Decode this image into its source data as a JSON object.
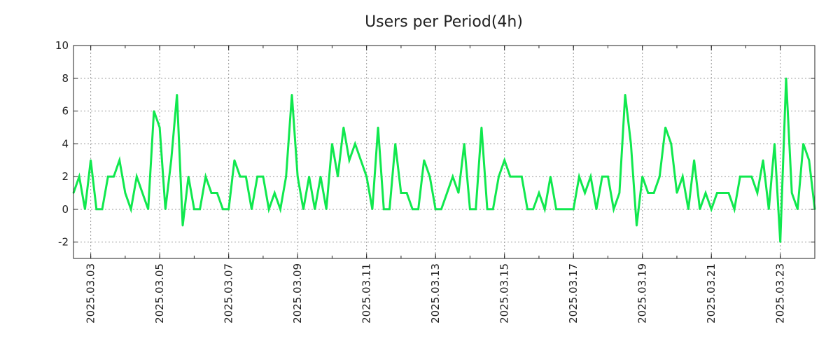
{
  "chart_data": {
    "type": "line",
    "title": "Users per Period(4h)",
    "xlabel": "",
    "ylabel": "",
    "period": "4h",
    "ylim": [
      -3,
      10
    ],
    "yticks": [
      -2,
      0,
      2,
      4,
      6,
      8,
      10
    ],
    "xticks": [
      {
        "index": 3,
        "label": "2025.03.03"
      },
      {
        "index": 15,
        "label": "2025.03.05"
      },
      {
        "index": 27,
        "label": "2025.03.07"
      },
      {
        "index": 39,
        "label": "2025.03.09"
      },
      {
        "index": 51,
        "label": "2025.03.11"
      },
      {
        "index": 63,
        "label": "2025.03.13"
      },
      {
        "index": 75,
        "label": "2025.03.15"
      },
      {
        "index": 87,
        "label": "2025.03.17"
      },
      {
        "index": 99,
        "label": "2025.03.19"
      },
      {
        "index": 111,
        "label": "2025.03.21"
      },
      {
        "index": 123,
        "label": "2025.03.23"
      }
    ],
    "grid": true,
    "legend": "none",
    "series": [
      {
        "name": "Users",
        "color": "#10e84e",
        "values": [
          1,
          2,
          0,
          3,
          0,
          0,
          2,
          2,
          3,
          1,
          0,
          2,
          1,
          0,
          6,
          5,
          0,
          3,
          7,
          -1,
          2,
          0,
          0,
          2,
          1,
          1,
          0,
          0,
          3,
          2,
          2,
          0,
          2,
          2,
          0,
          1,
          0,
          2,
          7,
          2,
          0,
          2,
          0,
          2,
          0,
          4,
          2,
          5,
          3,
          4,
          3,
          2,
          0,
          5,
          0,
          0,
          4,
          1,
          1,
          0,
          0,
          3,
          2,
          0,
          0,
          1,
          2,
          1,
          4,
          0,
          0,
          5,
          0,
          0,
          2,
          3,
          2,
          2,
          2,
          0,
          0,
          1,
          0,
          2,
          0,
          0,
          0,
          0,
          2,
          1,
          2,
          0,
          2,
          2,
          0,
          1,
          7,
          4,
          -1,
          2,
          1,
          1,
          2,
          5,
          4,
          1,
          2,
          0,
          3,
          0,
          1,
          0,
          1,
          1,
          1,
          0,
          2,
          2,
          2,
          1,
          3,
          0,
          4,
          -2,
          8,
          1,
          0,
          4,
          3,
          0
        ]
      }
    ]
  }
}
